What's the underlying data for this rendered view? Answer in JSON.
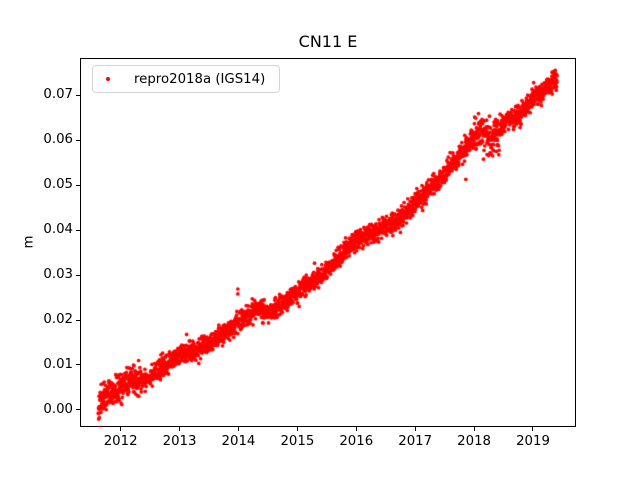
{
  "title": "CN11 E",
  "axes": {
    "ylabel": "m",
    "xlabel": ""
  },
  "legend": {
    "label": "repro2018a (IGS14)",
    "marker_color": "#ff0000",
    "position": "upper left"
  },
  "chart_data": {
    "type": "scatter",
    "title": "CN11 E",
    "xlabel": "",
    "ylabel": "m",
    "legend_entries": [
      "repro2018a (IGS14)"
    ],
    "grid": false,
    "series_name": "repro2018a (IGS14)",
    "color": "#ff0000",
    "marker": "dot",
    "marker_radius_px": 1.85,
    "xlim": [
      2011.31,
      2019.73
    ],
    "ylim": [
      -0.0038,
      0.0783
    ],
    "x_ticks": [
      {
        "v": 2012,
        "label": "2012"
      },
      {
        "v": 2013,
        "label": "2013"
      },
      {
        "v": 2014,
        "label": "2014"
      },
      {
        "v": 2015,
        "label": "2015"
      },
      {
        "v": 2016,
        "label": "2016"
      },
      {
        "v": 2017,
        "label": "2017"
      },
      {
        "v": 2018,
        "label": "2018"
      },
      {
        "v": 2019,
        "label": "2019"
      }
    ],
    "y_ticks": [
      {
        "v": 0.0,
        "label": "0.00"
      },
      {
        "v": 0.01,
        "label": "0.01"
      },
      {
        "v": 0.02,
        "label": "0.02"
      },
      {
        "v": 0.03,
        "label": "0.03"
      },
      {
        "v": 0.04,
        "label": "0.04"
      },
      {
        "v": 0.05,
        "label": "0.05"
      },
      {
        "v": 0.06,
        "label": "0.06"
      },
      {
        "v": 0.07,
        "label": "0.07"
      }
    ],
    "data_start_year": 2011.62,
    "data_end_year": 2019.41,
    "points_per_year": 365,
    "seed": 42,
    "trend_anchors": [
      [
        2011.62,
        0.0008
      ],
      [
        2011.75,
        0.0035
      ],
      [
        2011.9,
        0.0038
      ],
      [
        2012.0,
        0.005
      ],
      [
        2012.2,
        0.0068
      ],
      [
        2012.4,
        0.0068
      ],
      [
        2012.6,
        0.0085
      ],
      [
        2012.8,
        0.0102
      ],
      [
        2013.0,
        0.0122
      ],
      [
        2013.3,
        0.0134
      ],
      [
        2013.6,
        0.0152
      ],
      [
        2014.0,
        0.0195
      ],
      [
        2014.3,
        0.0224
      ],
      [
        2014.55,
        0.0218
      ],
      [
        2015.0,
        0.0262
      ],
      [
        2015.3,
        0.029
      ],
      [
        2015.6,
        0.0323
      ],
      [
        2016.0,
        0.038
      ],
      [
        2016.35,
        0.0398
      ],
      [
        2016.7,
        0.0422
      ],
      [
        2017.0,
        0.046
      ],
      [
        2017.5,
        0.0525
      ],
      [
        2018.0,
        0.0605
      ],
      [
        2018.12,
        0.0625
      ],
      [
        2018.3,
        0.0598
      ],
      [
        2018.55,
        0.0645
      ],
      [
        2018.8,
        0.066
      ],
      [
        2019.0,
        0.0695
      ],
      [
        2019.15,
        0.0705
      ],
      [
        2019.3,
        0.0725
      ],
      [
        2019.41,
        0.0737
      ]
    ],
    "noise_sd_base": 0.0011,
    "noise_regions": [
      {
        "from": 2011.62,
        "to": 2012.35,
        "sd": 0.0016
      },
      {
        "from": 2017.95,
        "to": 2018.45,
        "sd": 0.0018
      }
    ],
    "outliers": [
      [
        2012.02,
        0.0012
      ],
      [
        2012.35,
        0.004
      ],
      [
        2013.12,
        0.0168
      ],
      [
        2013.99,
        0.0258
      ],
      [
        2013.99,
        0.0269
      ],
      [
        2016.62,
        0.0388
      ],
      [
        2016.75,
        0.0395
      ],
      [
        2017.86,
        0.0513
      ],
      [
        2018.16,
        0.0558
      ],
      [
        2018.42,
        0.0568
      ]
    ]
  }
}
